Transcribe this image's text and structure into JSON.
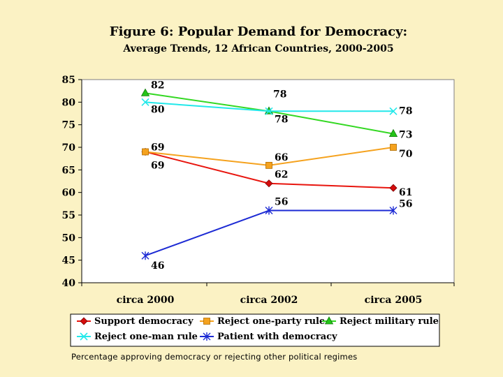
{
  "chart_data": {
    "type": "line",
    "title": "Figure 6:  Popular Demand for Democracy:",
    "subtitle": "Average Trends, 12 African Countries, 2000-2005",
    "categories": [
      "circa 2000",
      "circa 2002",
      "circa 2005"
    ],
    "ylim": [
      40,
      85
    ],
    "yticks": [
      40,
      45,
      50,
      55,
      60,
      65,
      70,
      75,
      80,
      85
    ],
    "grid": false,
    "legend_position": "bottom",
    "series": [
      {
        "name": "Support democracy",
        "values": [
          69,
          62,
          61
        ],
        "color": "#e8150e",
        "marker": "diamond"
      },
      {
        "name": "Reject one-party rule",
        "values": [
          69,
          66,
          70
        ],
        "color": "#f5a21e",
        "marker": "square"
      },
      {
        "name": "Reject military rule",
        "values": [
          82,
          78,
          73
        ],
        "color": "#33d822",
        "marker": "triangle"
      },
      {
        "name": "Reject one-man rule",
        "values": [
          80,
          78,
          78
        ],
        "color": "#22e8ea",
        "marker": "x"
      },
      {
        "name": "Patient with democracy",
        "values": [
          46,
          56,
          56
        ],
        "color": "#1c2ad4",
        "marker": "star"
      }
    ],
    "data_labels": [
      {
        "text": "82",
        "category": 0,
        "value": 82
      },
      {
        "text": "80",
        "category": 0,
        "value": 80
      },
      {
        "text": "69",
        "category": 0,
        "value": 69
      },
      {
        "text": "69",
        "category": 0,
        "value": 69
      },
      {
        "text": "46",
        "category": 0,
        "value": 46
      },
      {
        "text": "78",
        "category": 1,
        "value": 78
      },
      {
        "text": "78",
        "category": 1,
        "value": 78
      },
      {
        "text": "66",
        "category": 1,
        "value": 66
      },
      {
        "text": "62",
        "category": 1,
        "value": 62
      },
      {
        "text": "56",
        "category": 1,
        "value": 56
      },
      {
        "text": "78",
        "category": 2,
        "value": 78
      },
      {
        "text": "73",
        "category": 2,
        "value": 73
      },
      {
        "text": "70",
        "category": 2,
        "value": 70
      },
      {
        "text": "61",
        "category": 2,
        "value": 61
      },
      {
        "text": "56",
        "category": 2,
        "value": 56
      }
    ]
  },
  "caption": "Percentage approving democracy or rejecting other political regimes"
}
